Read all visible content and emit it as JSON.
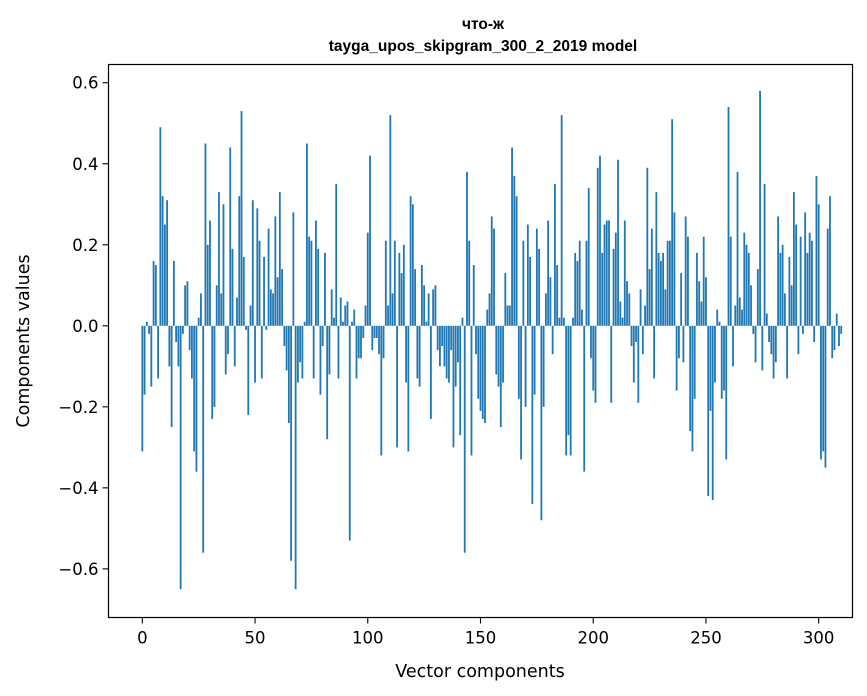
{
  "chart_data": {
    "type": "bar",
    "title": "что-ж",
    "subtitle": "tayga_upos_skipgram_300_2_2019 model",
    "xlabel": "Vector components",
    "ylabel": "Components values",
    "xlim": [
      -15,
      315
    ],
    "ylim": [
      -0.72,
      0.645
    ],
    "xticks": [
      0,
      50,
      100,
      150,
      200,
      250,
      300
    ],
    "yticks": [
      -0.6,
      -0.4,
      -0.2,
      0.0,
      0.2,
      0.4,
      0.6
    ],
    "ytick_labels": [
      "−0.6",
      "−0.4",
      "−0.2",
      "0.0",
      "0.2",
      "0.4",
      "0.6"
    ],
    "bar_color": "#1f77b4",
    "grid": false,
    "values": [
      -0.31,
      -0.17,
      0.01,
      -0.02,
      -0.15,
      0.16,
      0.15,
      -0.13,
      0.49,
      0.32,
      0.25,
      0.31,
      -0.1,
      -0.25,
      0.16,
      -0.04,
      -0.1,
      -0.65,
      -0.02,
      0.1,
      0.11,
      -0.06,
      -0.13,
      -0.31,
      -0.36,
      0.02,
      0.08,
      -0.56,
      0.45,
      0.2,
      0.26,
      -0.23,
      -0.2,
      0.1,
      0.33,
      0.08,
      0.3,
      -0.12,
      -0.07,
      0.44,
      0.19,
      -0.1,
      0.07,
      0.32,
      0.53,
      0.17,
      -0.01,
      -0.22,
      0.05,
      0.31,
      -0.14,
      0.29,
      0.21,
      -0.13,
      0.17,
      -0.01,
      0.24,
      0.09,
      0.08,
      0.27,
      0.12,
      0.33,
      0.14,
      -0.05,
      -0.11,
      -0.24,
      -0.58,
      0.28,
      -0.65,
      -0.14,
      -0.09,
      -0.13,
      0.01,
      0.45,
      0.22,
      0.21,
      -0.13,
      0.26,
      0.19,
      -0.17,
      -0.05,
      0.18,
      -0.28,
      -0.12,
      0.09,
      0.02,
      0.35,
      -0.13,
      0.07,
      0.01,
      0.05,
      0.06,
      -0.53,
      0.01,
      0.04,
      -0.13,
      -0.08,
      -0.08,
      -0.03,
      0.05,
      0.23,
      0.42,
      -0.06,
      -0.03,
      -0.03,
      -0.07,
      -0.32,
      -0.08,
      0.21,
      0.05,
      0.52,
      0.08,
      0.21,
      -0.3,
      0.18,
      0.13,
      0.2,
      -0.14,
      -0.31,
      0.32,
      0.3,
      0.14,
      -0.13,
      -0.15,
      0.15,
      0.1,
      0.01,
      0.08,
      -0.23,
      0.09,
      0.1,
      -0.06,
      -0.1,
      -0.05,
      -0.1,
      -0.13,
      -0.14,
      -0.06,
      -0.3,
      -0.15,
      -0.09,
      -0.27,
      0.02,
      -0.56,
      0.38,
      0.21,
      -0.32,
      0.15,
      -0.07,
      -0.18,
      -0.21,
      -0.23,
      -0.24,
      0.04,
      0.08,
      0.27,
      0.24,
      -0.12,
      -0.15,
      -0.25,
      -0.14,
      0.13,
      0.05,
      0.05,
      0.44,
      0.37,
      0.32,
      -0.18,
      -0.33,
      0.21,
      -0.2,
      0.25,
      0.17,
      -0.44,
      -0.17,
      0.24,
      0.19,
      -0.48,
      -0.2,
      0.08,
      0.26,
      0.12,
      -0.07,
      0.35,
      0.15,
      0.02,
      0.52,
      0.02,
      -0.32,
      -0.27,
      -0.32,
      0.02,
      0.18,
      0.16,
      0.21,
      0.04,
      -0.36,
      0.21,
      0.34,
      -0.08,
      -0.16,
      -0.19,
      0.39,
      0.42,
      0.18,
      0.25,
      0.26,
      0.26,
      -0.19,
      0.19,
      0.23,
      0.41,
      0.06,
      0.02,
      0.26,
      0.11,
      0.08,
      -0.05,
      -0.14,
      -0.04,
      -0.19,
      0.09,
      -0.07,
      0.05,
      0.39,
      0.14,
      0.24,
      -0.13,
      0.33,
      0.18,
      0.16,
      0.18,
      0.09,
      0.21,
      0.21,
      0.51,
      0.28,
      -0.16,
      -0.08,
      0.13,
      -0.09,
      0.27,
      0.22,
      -0.26,
      -0.31,
      -0.18,
      0.18,
      0.11,
      0.06,
      0.22,
      0.12,
      -0.42,
      -0.21,
      -0.43,
      -0.14,
      0.04,
      0.01,
      -0.18,
      -0.16,
      -0.33,
      0.54,
      0.22,
      -0.1,
      0.05,
      0.38,
      0.07,
      0.04,
      0.23,
      0.2,
      0.18,
      0.1,
      -0.02,
      -0.09,
      0.14,
      0.58,
      -0.11,
      0.35,
      0.03,
      -0.04,
      -0.07,
      -0.13,
      -0.09,
      0.27,
      0.18,
      0.2,
      0.08,
      -0.13,
      0.17,
      0.1,
      0.33,
      0.25,
      -0.07,
      0.22,
      -0.02,
      0.28,
      0.18,
      0.23,
      0.21,
      -0.04,
      0.37,
      0.3,
      -0.33,
      -0.31,
      -0.35,
      0.24,
      0.32,
      -0.08,
      -0.06,
      0.03,
      -0.05,
      -0.02
    ]
  }
}
